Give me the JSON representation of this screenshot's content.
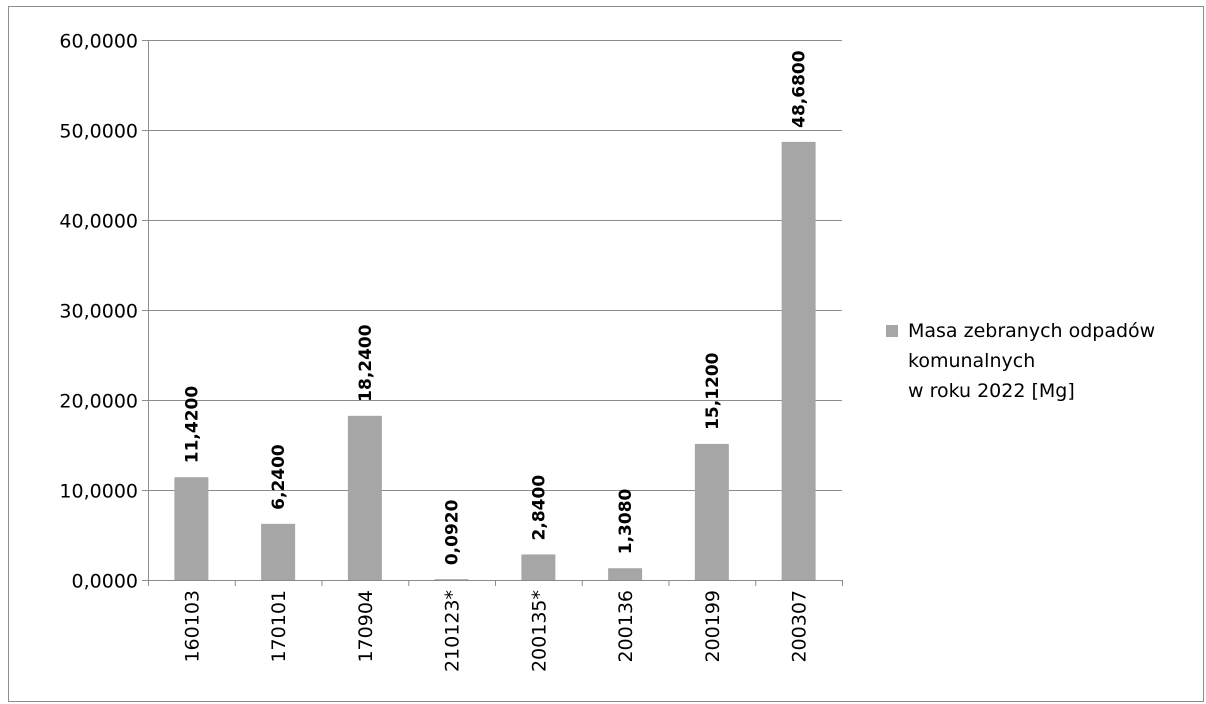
{
  "chart_data": {
    "type": "bar",
    "categories": [
      "160103",
      "170101",
      "170904",
      "210123*",
      "200135*",
      "200136",
      "200199",
      "200307"
    ],
    "series": [
      {
        "name": "Masa zebranych odpadów komunalnych w roku 2022 [Mg]",
        "values": [
          11.42,
          6.24,
          18.24,
          0.092,
          2.84,
          1.308,
          15.12,
          48.68
        ],
        "data_labels": [
          "11,4200",
          "6,2400",
          "18,2400",
          "0,0920",
          "2,8400",
          "1,3080",
          "15,1200",
          "48,6800"
        ],
        "color": "#a6a6a6"
      }
    ],
    "ylim": [
      0,
      60
    ],
    "yticks": [
      0,
      10,
      20,
      30,
      40,
      50,
      60
    ],
    "ytick_labels": [
      "0,0000",
      "10,0000",
      "20,0000",
      "30,0000",
      "40,0000",
      "50,0000",
      "60,0000"
    ],
    "grid": true,
    "gridline_color": "#8c8c8c",
    "legend_position": "right",
    "title": "",
    "xlabel": "",
    "ylabel": ""
  },
  "legend": {
    "lines": [
      "Masa zebranych odpadów",
      "komunalnych",
      "w roku 2022 [Mg]"
    ]
  }
}
